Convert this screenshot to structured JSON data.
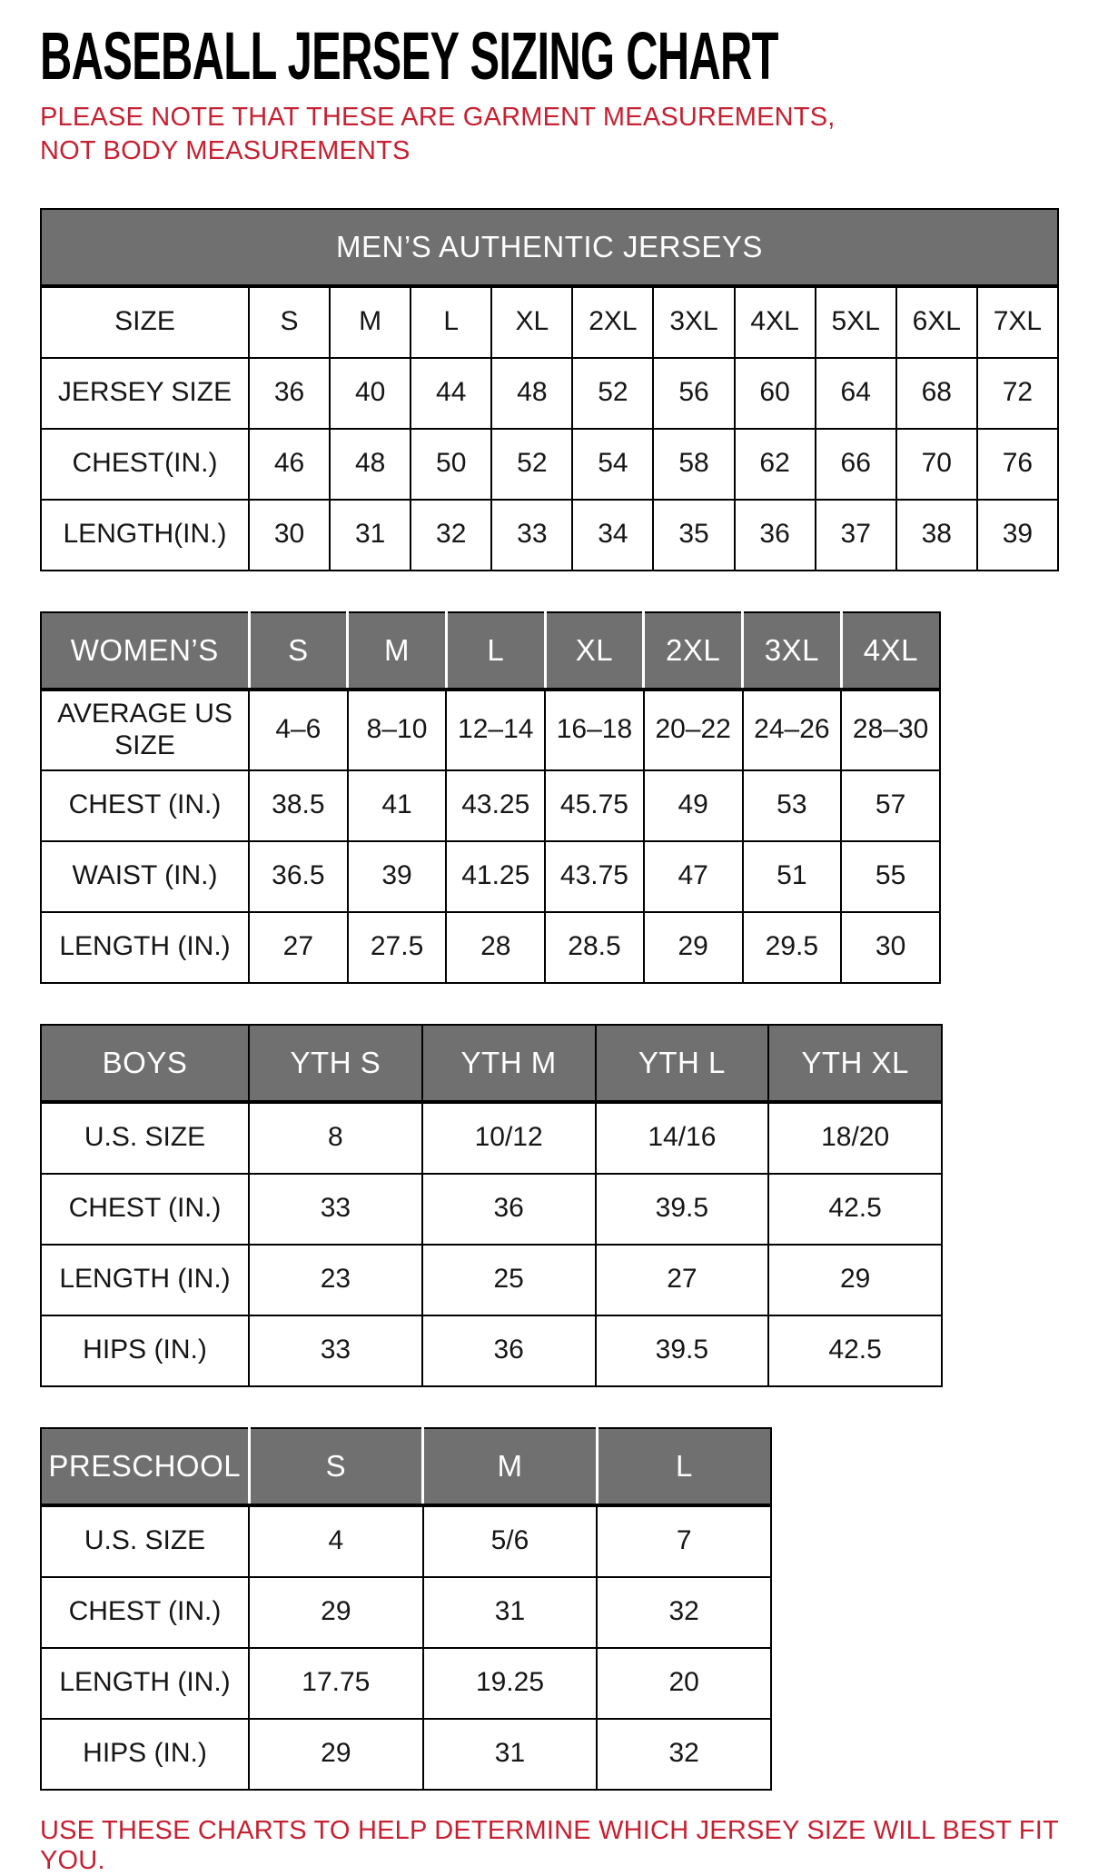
{
  "page": {
    "title": "BASEBALL JERSEY SIZING CHART",
    "note": "PLEASE NOTE THAT THESE ARE GARMENT MEASUREMENTS, NOT BODY MEASUREMENTS",
    "footer": "USE THESE CHARTS TO HELP DETERMINE WHICH JERSEY SIZE WILL BEST FIT YOU.",
    "colors": {
      "accent_red": "#C62132",
      "header_gray": "#707070",
      "border_black": "#000000",
      "text_black": "#161616"
    }
  },
  "tables": [
    {
      "id": "mens",
      "header_style": "merged",
      "header_title": "MEN’S AUTHENTIC JERSEYS",
      "rows": [
        {
          "label": "SIZE",
          "values": [
            "S",
            "M",
            "L",
            "XL",
            "2XL",
            "3XL",
            "4XL",
            "5XL",
            "6XL",
            "7XL"
          ]
        },
        {
          "label": "JERSEY SIZE",
          "values": [
            "36",
            "40",
            "44",
            "48",
            "52",
            "56",
            "60",
            "64",
            "68",
            "72"
          ]
        },
        {
          "label": "CHEST(IN.)",
          "values": [
            "46",
            "48",
            "50",
            "52",
            "54",
            "58",
            "62",
            "66",
            "70",
            "76"
          ]
        },
        {
          "label": "LENGTH(IN.)",
          "values": [
            "30",
            "31",
            "32",
            "33",
            "34",
            "35",
            "36",
            "37",
            "38",
            "39"
          ]
        }
      ]
    },
    {
      "id": "womens",
      "header_style": "cells",
      "header_label": "WOMEN’S",
      "header_values": [
        "S",
        "M",
        "L",
        "XL",
        "2XL",
        "3XL",
        "4XL"
      ],
      "rows": [
        {
          "label": "AVERAGE US SIZE",
          "values": [
            "4–6",
            "8–10",
            "12–14",
            "16–18",
            "20–22",
            "24–26",
            "28–30"
          ]
        },
        {
          "label": "CHEST (IN.)",
          "values": [
            "38.5",
            "41",
            "43.25",
            "45.75",
            "49",
            "53",
            "57"
          ]
        },
        {
          "label": "WAIST (IN.)",
          "values": [
            "36.5",
            "39",
            "41.25",
            "43.75",
            "47",
            "51",
            "55"
          ]
        },
        {
          "label": "LENGTH (IN.)",
          "values": [
            "27",
            "27.5",
            "28",
            "28.5",
            "29",
            "29.5",
            "30"
          ]
        }
      ]
    },
    {
      "id": "boys",
      "header_style": "cells",
      "header_label": "BOYS",
      "header_values": [
        "YTH S",
        "YTH M",
        "YTH L",
        "YTH XL"
      ],
      "rows": [
        {
          "label": "U.S. SIZE",
          "values": [
            "8",
            "10/12",
            "14/16",
            "18/20"
          ]
        },
        {
          "label": "CHEST (IN.)",
          "values": [
            "33",
            "36",
            "39.5",
            "42.5"
          ]
        },
        {
          "label": "LENGTH (IN.)",
          "values": [
            "23",
            "25",
            "27",
            "29"
          ]
        },
        {
          "label": "HIPS (IN.)",
          "values": [
            "33",
            "36",
            "39.5",
            "42.5"
          ]
        }
      ]
    },
    {
      "id": "preschool",
      "header_style": "cells",
      "header_label": "PRESCHOOL",
      "header_values": [
        "S",
        "M",
        "L"
      ],
      "rows": [
        {
          "label": "U.S. SIZE",
          "values": [
            "4",
            "5/6",
            "7"
          ]
        },
        {
          "label": "CHEST (IN.)",
          "values": [
            "29",
            "31",
            "32"
          ]
        },
        {
          "label": "LENGTH (IN.)",
          "values": [
            "17.75",
            "19.25",
            "20"
          ]
        },
        {
          "label": "HIPS (IN.)",
          "values": [
            "29",
            "31",
            "32"
          ]
        }
      ]
    }
  ]
}
